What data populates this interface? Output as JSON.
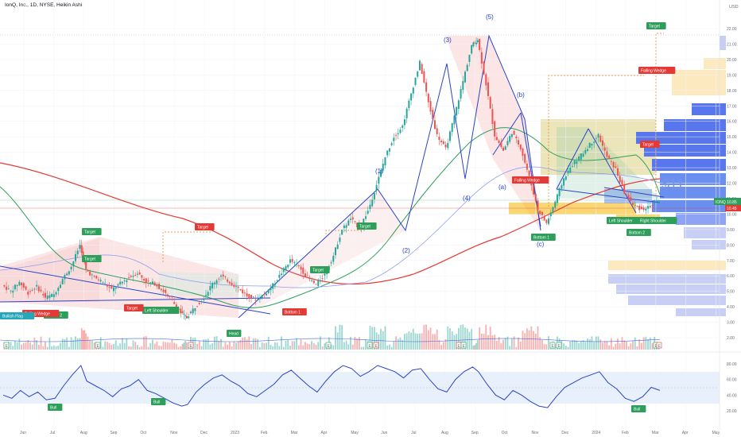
{
  "header": {
    "title": "IonQ, Inc., 1D, NYSE, Heikin Ashi",
    "currency": "USD"
  },
  "colors": {
    "up": "#26a69a",
    "down": "#ef5350",
    "ma_red": "#e53935",
    "ma_green": "#2e9e5b",
    "blue": "#2a43c9",
    "gold": "#f5b700",
    "rsi": "#2a43c9"
  },
  "chart_data": {
    "type": "line",
    "ticker_label": "IONQ",
    "last_price_label": "10.85",
    "secondary_price_label": "10.45",
    "annotation_price": "$11",
    "y_ticks": [
      "22.00",
      "21.00",
      "20.00",
      "19.00",
      "18.00",
      "17.00",
      "16.00",
      "15.00",
      "14.00",
      "13.00",
      "12.00",
      "11.00",
      "10.00",
      "9.00",
      "8.00",
      "7.00",
      "6.00",
      "5.00",
      "4.00",
      "3.00",
      "2.00"
    ],
    "rsi_ticks": [
      "80.00",
      "60.00",
      "40.00",
      "20.00"
    ],
    "x_ticks": [
      "Jun",
      "Jul",
      "Aug",
      "Sep",
      "Oct",
      "Nov",
      "Dec",
      "2023",
      "Feb",
      "Mar",
      "Apr",
      "May",
      "Jun",
      "Jul",
      "Aug",
      "Sep",
      "Oct",
      "Nov",
      "Dec",
      "2024",
      "Feb",
      "Mar",
      "Apr",
      "May"
    ],
    "price": [
      [
        0,
        5.4
      ],
      [
        0.3,
        5.0
      ],
      [
        0.6,
        5.6
      ],
      [
        0.9,
        4.9
      ],
      [
        1.2,
        5.3
      ],
      [
        1.5,
        4.6
      ],
      [
        1.8,
        4.8
      ],
      [
        2.1,
        5.8
      ],
      [
        2.4,
        6.6
      ],
      [
        2.7,
        8.0
      ],
      [
        2.9,
        6.4
      ],
      [
        3.2,
        5.9
      ],
      [
        3.5,
        5.6
      ],
      [
        3.8,
        5.1
      ],
      [
        4.1,
        5.5
      ],
      [
        4.4,
        5.9
      ],
      [
        4.7,
        6.2
      ],
      [
        5.0,
        5.6
      ],
      [
        5.3,
        5.5
      ],
      [
        5.6,
        5.0
      ],
      [
        5.9,
        4.4
      ],
      [
        6.2,
        3.6
      ],
      [
        6.4,
        3.3
      ],
      [
        6.7,
        4.0
      ],
      [
        7.0,
        4.6
      ],
      [
        7.3,
        5.5
      ],
      [
        7.6,
        6.0
      ],
      [
        7.9,
        5.6
      ],
      [
        8.2,
        5.2
      ],
      [
        8.5,
        4.7
      ],
      [
        8.8,
        4.5
      ],
      [
        9.1,
        4.8
      ],
      [
        9.4,
        5.4
      ],
      [
        9.7,
        6.2
      ],
      [
        10.0,
        7.0
      ],
      [
        10.3,
        6.6
      ],
      [
        10.6,
        5.9
      ],
      [
        10.9,
        5.4
      ],
      [
        11.2,
        6.1
      ],
      [
        11.5,
        7.3
      ],
      [
        11.8,
        9.0
      ],
      [
        12.1,
        9.7
      ],
      [
        12.4,
        9.1
      ],
      [
        12.7,
        10.2
      ],
      [
        13.0,
        11.9
      ],
      [
        13.3,
        13.7
      ],
      [
        13.6,
        15.0
      ],
      [
        13.9,
        15.7
      ],
      [
        14.2,
        17.8
      ],
      [
        14.5,
        19.8
      ],
      [
        14.8,
        17.2
      ],
      [
        15.1,
        15.1
      ],
      [
        15.4,
        14.2
      ],
      [
        15.7,
        16.3
      ],
      [
        16.0,
        18.6
      ],
      [
        16.3,
        20.9
      ],
      [
        16.5,
        21.3
      ],
      [
        16.8,
        18.4
      ],
      [
        17.1,
        15.1
      ],
      [
        17.4,
        14.1
      ],
      [
        17.7,
        15.3
      ],
      [
        18.0,
        14.3
      ],
      [
        18.3,
        12.4
      ],
      [
        18.6,
        10.3
      ],
      [
        18.9,
        9.4
      ],
      [
        19.2,
        10.8
      ],
      [
        19.5,
        12.3
      ],
      [
        19.8,
        13.2
      ],
      [
        20.1,
        13.8
      ],
      [
        20.4,
        14.5
      ],
      [
        20.7,
        15.1
      ],
      [
        21.0,
        13.7
      ],
      [
        21.3,
        12.9
      ],
      [
        21.6,
        11.4
      ],
      [
        21.9,
        10.6
      ],
      [
        22.2,
        10.3
      ],
      [
        22.5,
        10.5
      ],
      [
        22.8,
        10.85
      ]
    ],
    "rsi": [
      [
        0,
        40
      ],
      [
        0.3,
        36
      ],
      [
        0.6,
        46
      ],
      [
        0.9,
        38
      ],
      [
        1.2,
        44
      ],
      [
        1.5,
        34
      ],
      [
        1.8,
        36
      ],
      [
        2.1,
        52
      ],
      [
        2.4,
        66
      ],
      [
        2.7,
        78
      ],
      [
        2.9,
        58
      ],
      [
        3.2,
        52
      ],
      [
        3.5,
        46
      ],
      [
        3.8,
        38
      ],
      [
        4.1,
        48
      ],
      [
        4.4,
        52
      ],
      [
        4.7,
        60
      ],
      [
        5.0,
        46
      ],
      [
        5.3,
        42
      ],
      [
        5.6,
        36
      ],
      [
        5.9,
        30
      ],
      [
        6.2,
        26
      ],
      [
        6.4,
        28
      ],
      [
        6.7,
        44
      ],
      [
        7.0,
        54
      ],
      [
        7.3,
        62
      ],
      [
        7.6,
        66
      ],
      [
        7.9,
        58
      ],
      [
        8.2,
        52
      ],
      [
        8.5,
        42
      ],
      [
        8.8,
        38
      ],
      [
        9.1,
        46
      ],
      [
        9.4,
        54
      ],
      [
        9.7,
        66
      ],
      [
        10.0,
        72
      ],
      [
        10.3,
        62
      ],
      [
        10.6,
        52
      ],
      [
        10.9,
        44
      ],
      [
        11.2,
        58
      ],
      [
        11.5,
        70
      ],
      [
        11.8,
        78
      ],
      [
        12.1,
        74
      ],
      [
        12.4,
        64
      ],
      [
        12.7,
        70
      ],
      [
        13.0,
        78
      ],
      [
        13.3,
        74
      ],
      [
        13.6,
        70
      ],
      [
        13.9,
        62
      ],
      [
        14.2,
        72
      ],
      [
        14.5,
        74
      ],
      [
        14.8,
        60
      ],
      [
        15.1,
        48
      ],
      [
        15.4,
        44
      ],
      [
        15.7,
        60
      ],
      [
        16.0,
        70
      ],
      [
        16.3,
        76
      ],
      [
        16.5,
        70
      ],
      [
        16.8,
        54
      ],
      [
        17.1,
        40
      ],
      [
        17.4,
        34
      ],
      [
        17.7,
        46
      ],
      [
        18.0,
        40
      ],
      [
        18.3,
        32
      ],
      [
        18.6,
        26
      ],
      [
        18.9,
        24
      ],
      [
        19.2,
        38
      ],
      [
        19.5,
        50
      ],
      [
        19.8,
        56
      ],
      [
        20.1,
        62
      ],
      [
        20.4,
        66
      ],
      [
        20.7,
        70
      ],
      [
        21.0,
        56
      ],
      [
        21.3,
        48
      ],
      [
        21.6,
        36
      ],
      [
        21.9,
        32
      ],
      [
        22.2,
        38
      ],
      [
        22.5,
        50
      ],
      [
        22.8,
        46
      ]
    ],
    "legend": "none",
    "grid": true
  },
  "annotations": {
    "waves": [
      "(1)",
      "(2)",
      "(3)",
      "(4)",
      "(5)",
      "(a)",
      "(b)",
      "(c)"
    ],
    "green_labels": [
      "Target",
      "Target",
      "Target",
      "Target",
      "Target",
      "Bottom 2",
      "Left Shoulder",
      "Head",
      "Bottom 1",
      "Left Shoulder",
      "Right Shoulder",
      "Bottom 2",
      "Bull",
      "Bull",
      "Bull"
    ],
    "red_labels": [
      "Target",
      "Falling Wedge",
      "Falling Wedge",
      "Target",
      "Target",
      "Falling Wedge",
      "Bottom 1"
    ],
    "cyan_labels": [
      "Bullish Flag"
    ],
    "small_markers": [
      "E",
      "E",
      "E",
      "E",
      "E",
      "E",
      "E",
      "E",
      "E",
      "E",
      "E",
      "E"
    ]
  }
}
